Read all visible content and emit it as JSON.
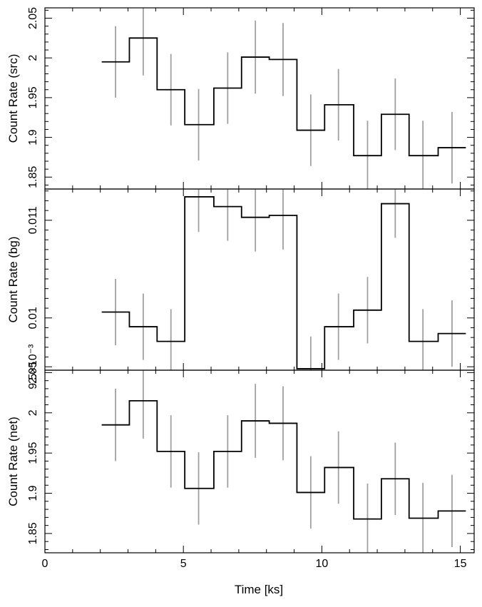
{
  "chart_data": {
    "type": "line",
    "xlabel": "Time [ks]",
    "xlim": [
      0,
      15.5
    ],
    "x_ticks": [
      0,
      5,
      10,
      15
    ],
    "x_tick_labels": [
      "0",
      "5",
      "10",
      "15"
    ],
    "colors": {
      "step": "#000000",
      "errorbar": "#a0a0a0",
      "frame": "#000000"
    },
    "bin_edges": [
      2.05,
      3.05,
      4.05,
      5.05,
      6.1,
      7.1,
      8.1,
      9.1,
      10.1,
      11.15,
      12.15,
      13.15,
      14.2,
      15.2
    ],
    "bin_centers": [
      2.55,
      3.55,
      4.55,
      5.55,
      6.6,
      7.6,
      8.6,
      9.6,
      10.6,
      11.65,
      12.65,
      13.65,
      14.7
    ],
    "panels": [
      {
        "ylabel": "Count Rate (src)",
        "ylim": [
          1.835,
          2.063
        ],
        "y_ticks": [
          1.85,
          1.9,
          1.95,
          2,
          2.05
        ],
        "y_tick_labels": [
          "1.85",
          "1.9",
          "1.95",
          "2",
          "2.05"
        ],
        "values": [
          1.995,
          2.025,
          1.96,
          1.916,
          1.962,
          2.001,
          1.998,
          1.909,
          1.941,
          1.877,
          1.929,
          1.877,
          1.887
        ],
        "errors": [
          0.045,
          0.047,
          0.045,
          0.045,
          0.045,
          0.046,
          0.046,
          0.045,
          0.045,
          0.044,
          0.045,
          0.044,
          0.045
        ]
      },
      {
        "ylabel": "Count Rate (bg)",
        "ylim": [
          0.009465,
          0.01132
        ],
        "y_ticks": [
          0.0095,
          0.01,
          0.011
        ],
        "y_tick_labels": [
          "9.5×10⁻³",
          "0.01",
          "0.011"
        ],
        "values": [
          0.01006,
          0.00991,
          0.00976,
          0.01124,
          0.01114,
          0.01103,
          0.01105,
          0.00948,
          0.00991,
          0.01008,
          0.01117,
          0.00976,
          0.00984
        ],
        "errors": [
          0.00034,
          0.00034,
          0.00033,
          0.00036,
          0.00035,
          0.00035,
          0.00035,
          0.00033,
          0.00034,
          0.00034,
          0.00035,
          0.00033,
          0.00034
        ]
      },
      {
        "ylabel": "Count Rate (net)",
        "ylim": [
          1.826,
          2.053
        ],
        "y_ticks": [
          1.85,
          1.9,
          1.95,
          2,
          2.05
        ],
        "y_tick_labels": [
          "1.85",
          "1.9",
          "1.95",
          "2",
          "2.05"
        ],
        "values": [
          1.985,
          2.015,
          1.952,
          1.906,
          1.952,
          1.99,
          1.987,
          1.901,
          1.932,
          1.868,
          1.918,
          1.869,
          1.878
        ],
        "errors": [
          0.045,
          0.047,
          0.045,
          0.045,
          0.045,
          0.046,
          0.046,
          0.045,
          0.045,
          0.044,
          0.045,
          0.044,
          0.045
        ]
      }
    ]
  }
}
